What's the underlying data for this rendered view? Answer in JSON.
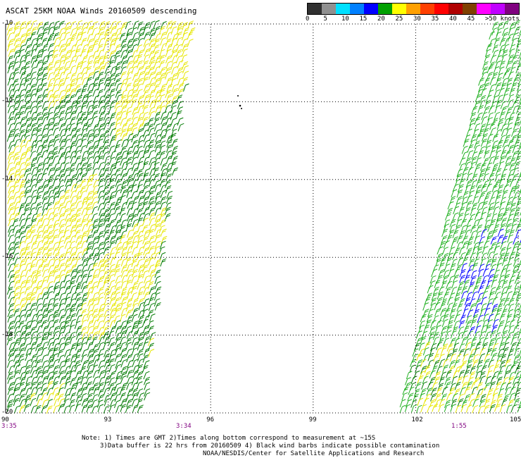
{
  "title": "ASCAT 25KM NOAA Winds 20160509 descending",
  "legend": {
    "colors": [
      "#303030",
      "#909090",
      "#00e0ff",
      "#0080ff",
      "#0000ff",
      "#00a000",
      "#ffff00",
      "#ffa000",
      "#ff4000",
      "#ff0000",
      "#b00000",
      "#804000",
      "#ff00ff",
      "#c000ff",
      "#800080"
    ],
    "ticks": [
      "0",
      "5",
      "10",
      "15",
      "20",
      "25",
      "30",
      "35",
      "40",
      "45",
      ">50 knots"
    ]
  },
  "axes": {
    "x_ticks": [
      "90",
      "93",
      "96",
      "99",
      "102",
      "105"
    ],
    "y_ticks": [
      "-10",
      "-12",
      "-14",
      "-16",
      "-18",
      "-20"
    ],
    "lon_range": [
      90,
      105
    ],
    "lat_range": [
      -20,
      -10
    ]
  },
  "times": {
    "t1": "3:35",
    "t2": "3:34",
    "t3": "1:55"
  },
  "notes": {
    "line1": "Note: 1) Times are GMT 2)Times along bottom correspond to measurement at ~15S",
    "line2": "3)Data buffer is 22 hrs from 20160509 4) Black wind barbs indicate possible contamination",
    "line3": "NOAA/NESDIS/Center for Satellite Applications and Research"
  }
}
